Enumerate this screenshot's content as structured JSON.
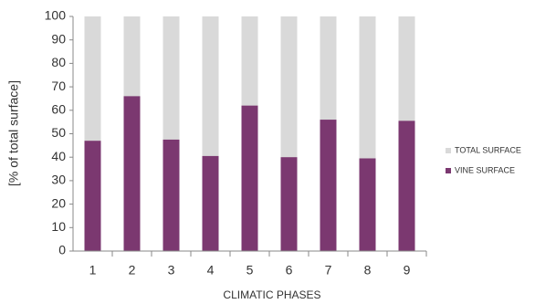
{
  "chart_data": {
    "type": "bar",
    "barmode": "overlay",
    "categories": [
      "1",
      "2",
      "3",
      "4",
      "5",
      "6",
      "7",
      "8",
      "9"
    ],
    "series": [
      {
        "name": "TOTAL SURFACE",
        "color": "#d9d9d9",
        "values": [
          100,
          100,
          100,
          100,
          100,
          100,
          100,
          100,
          100
        ]
      },
      {
        "name": "VINE SURFACE",
        "color": "#7b3870",
        "values": [
          47,
          66,
          47.5,
          40.5,
          62,
          40,
          56,
          39.5,
          55.5
        ]
      }
    ],
    "xlabel": "CLIMATIC PHASES",
    "ylabel": "[% of total surface]",
    "ylim": [
      0,
      100
    ],
    "yticks": [
      0,
      10,
      20,
      30,
      40,
      50,
      60,
      70,
      80,
      90,
      100
    ],
    "grid": false,
    "legend": "right"
  }
}
